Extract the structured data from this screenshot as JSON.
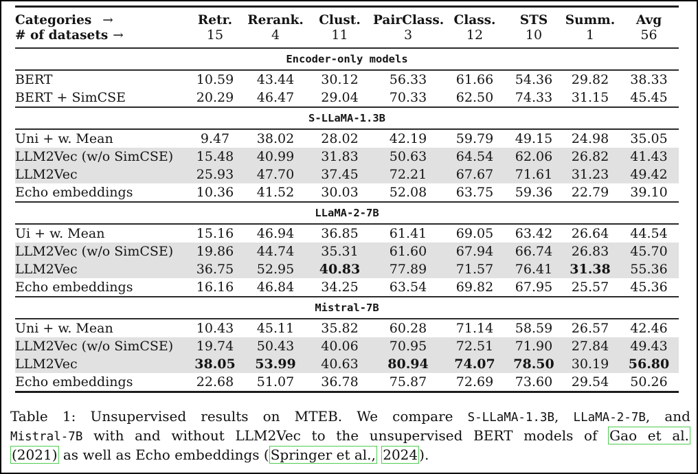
{
  "table": {
    "header": {
      "row1_label": "Categories",
      "row1_arrow": "→",
      "row2_label": "# of datasets",
      "row2_arrow": "→",
      "columns": [
        {
          "name": "Retr.",
          "datasets": "15"
        },
        {
          "name": "Rerank.",
          "datasets": "4"
        },
        {
          "name": "Clust.",
          "datasets": "11"
        },
        {
          "name": "PairClass.",
          "datasets": "3"
        },
        {
          "name": "Class.",
          "datasets": "12"
        },
        {
          "name": "STS",
          "datasets": "10"
        },
        {
          "name": "Summ.",
          "datasets": "1"
        },
        {
          "name": "Avg",
          "datasets": "56"
        }
      ]
    },
    "sections": [
      {
        "title": "Encoder-only models",
        "rows": [
          {
            "label": "BERT",
            "values": [
              "10.59",
              "43.44",
              "30.12",
              "56.33",
              "61.66",
              "54.36",
              "29.82",
              "38.33"
            ],
            "bold": [],
            "shaded": false
          },
          {
            "label": "BERT + SimCSE",
            "values": [
              "20.29",
              "46.47",
              "29.04",
              "70.33",
              "62.50",
              "74.33",
              "31.15",
              "45.45"
            ],
            "bold": [],
            "shaded": false
          }
        ]
      },
      {
        "title": "S-LLaMA-1.3B",
        "rows": [
          {
            "label": "Uni + w. Mean",
            "values": [
              "9.47",
              "38.02",
              "28.02",
              "42.19",
              "59.79",
              "49.15",
              "24.98",
              "35.05"
            ],
            "bold": [],
            "shaded": false
          },
          {
            "label": "LLM2Vec (w/o SimCSE)",
            "values": [
              "15.48",
              "40.99",
              "31.83",
              "50.63",
              "64.54",
              "62.06",
              "26.82",
              "41.43"
            ],
            "bold": [],
            "shaded": true
          },
          {
            "label": "LLM2Vec",
            "values": [
              "25.93",
              "47.70",
              "37.45",
              "72.21",
              "67.67",
              "71.61",
              "31.23",
              "49.42"
            ],
            "bold": [],
            "shaded": true
          },
          {
            "label": "Echo embeddings",
            "values": [
              "10.36",
              "41.52",
              "30.03",
              "52.08",
              "63.75",
              "59.36",
              "22.79",
              "39.10"
            ],
            "bold": [],
            "shaded": false
          }
        ]
      },
      {
        "title": "LLaMA-2-7B",
        "rows": [
          {
            "label": "Ui + w. Mean",
            "values": [
              "15.16",
              "46.94",
              "36.85",
              "61.41",
              "69.05",
              "63.42",
              "26.64",
              "44.54"
            ],
            "bold": [],
            "shaded": false
          },
          {
            "label": "LLM2Vec (w/o SimCSE)",
            "values": [
              "19.86",
              "44.74",
              "35.31",
              "61.60",
              "67.94",
              "66.74",
              "26.83",
              "45.70"
            ],
            "bold": [],
            "shaded": true
          },
          {
            "label": "LLM2Vec",
            "values": [
              "36.75",
              "52.95",
              "40.83",
              "77.89",
              "71.57",
              "76.41",
              "31.38",
              "55.36"
            ],
            "bold": [
              2,
              6
            ],
            "shaded": true
          },
          {
            "label": "Echo embeddings",
            "values": [
              "16.16",
              "46.84",
              "34.25",
              "63.54",
              "69.82",
              "67.95",
              "25.57",
              "45.36"
            ],
            "bold": [],
            "shaded": false
          }
        ]
      },
      {
        "title": "Mistral-7B",
        "rows": [
          {
            "label": "Uni + w. Mean",
            "values": [
              "10.43",
              "45.11",
              "35.82",
              "60.28",
              "71.14",
              "58.59",
              "26.57",
              "42.46"
            ],
            "bold": [],
            "shaded": false
          },
          {
            "label": "LLM2Vec (w/o SimCSE)",
            "values": [
              "19.74",
              "50.43",
              "40.06",
              "70.95",
              "72.51",
              "71.90",
              "27.84",
              "49.43"
            ],
            "bold": [],
            "shaded": true
          },
          {
            "label": "LLM2Vec",
            "values": [
              "38.05",
              "53.99",
              "40.63",
              "80.94",
              "74.07",
              "78.50",
              "30.19",
              "56.80"
            ],
            "bold": [
              0,
              1,
              3,
              4,
              5,
              7
            ],
            "shaded": true
          },
          {
            "label": "Echo embeddings",
            "values": [
              "22.68",
              "51.07",
              "36.78",
              "75.87",
              "72.69",
              "73.60",
              "29.54",
              "50.26"
            ],
            "bold": [],
            "shaded": false
          }
        ]
      }
    ]
  },
  "caption": {
    "lines": [
      {
        "justify": true,
        "segments": [
          {
            "t": "Table 1:  Unsupervised results on MTEB. We compare ",
            "f": "serif"
          },
          {
            "t": "S-LLaMA-1.3B",
            "f": "mono"
          },
          {
            "t": ", ",
            "f": "serif"
          },
          {
            "t": "LLaMA-2-7B",
            "f": "mono"
          },
          {
            "t": ", and",
            "f": "serif"
          }
        ]
      },
      {
        "justify": true,
        "segments": [
          {
            "t": "Mistral-7B",
            "f": "mono"
          },
          {
            "t": " with and without LLM2Vec to the unsupervised BERT models of ",
            "f": "serif"
          },
          {
            "t": "Gao et al.",
            "f": "serif",
            "link": true
          }
        ]
      },
      {
        "justify": false,
        "segments": [
          {
            "t": "(2021)",
            "f": "serif",
            "link": true
          },
          {
            "t": " as well as Echo embeddings (",
            "f": "serif"
          },
          {
            "t": "Springer et al.,",
            "f": "serif",
            "link": true
          },
          {
            "t": " ",
            "f": "serif"
          },
          {
            "t": "2024",
            "f": "serif",
            "link": true
          },
          {
            "t": ").",
            "f": "serif"
          }
        ]
      }
    ]
  },
  "colors": {
    "row_shading": "#e1e1e1",
    "link_box": "#4ecb4e",
    "rule": "#1c1c1c",
    "text": "#141414"
  }
}
